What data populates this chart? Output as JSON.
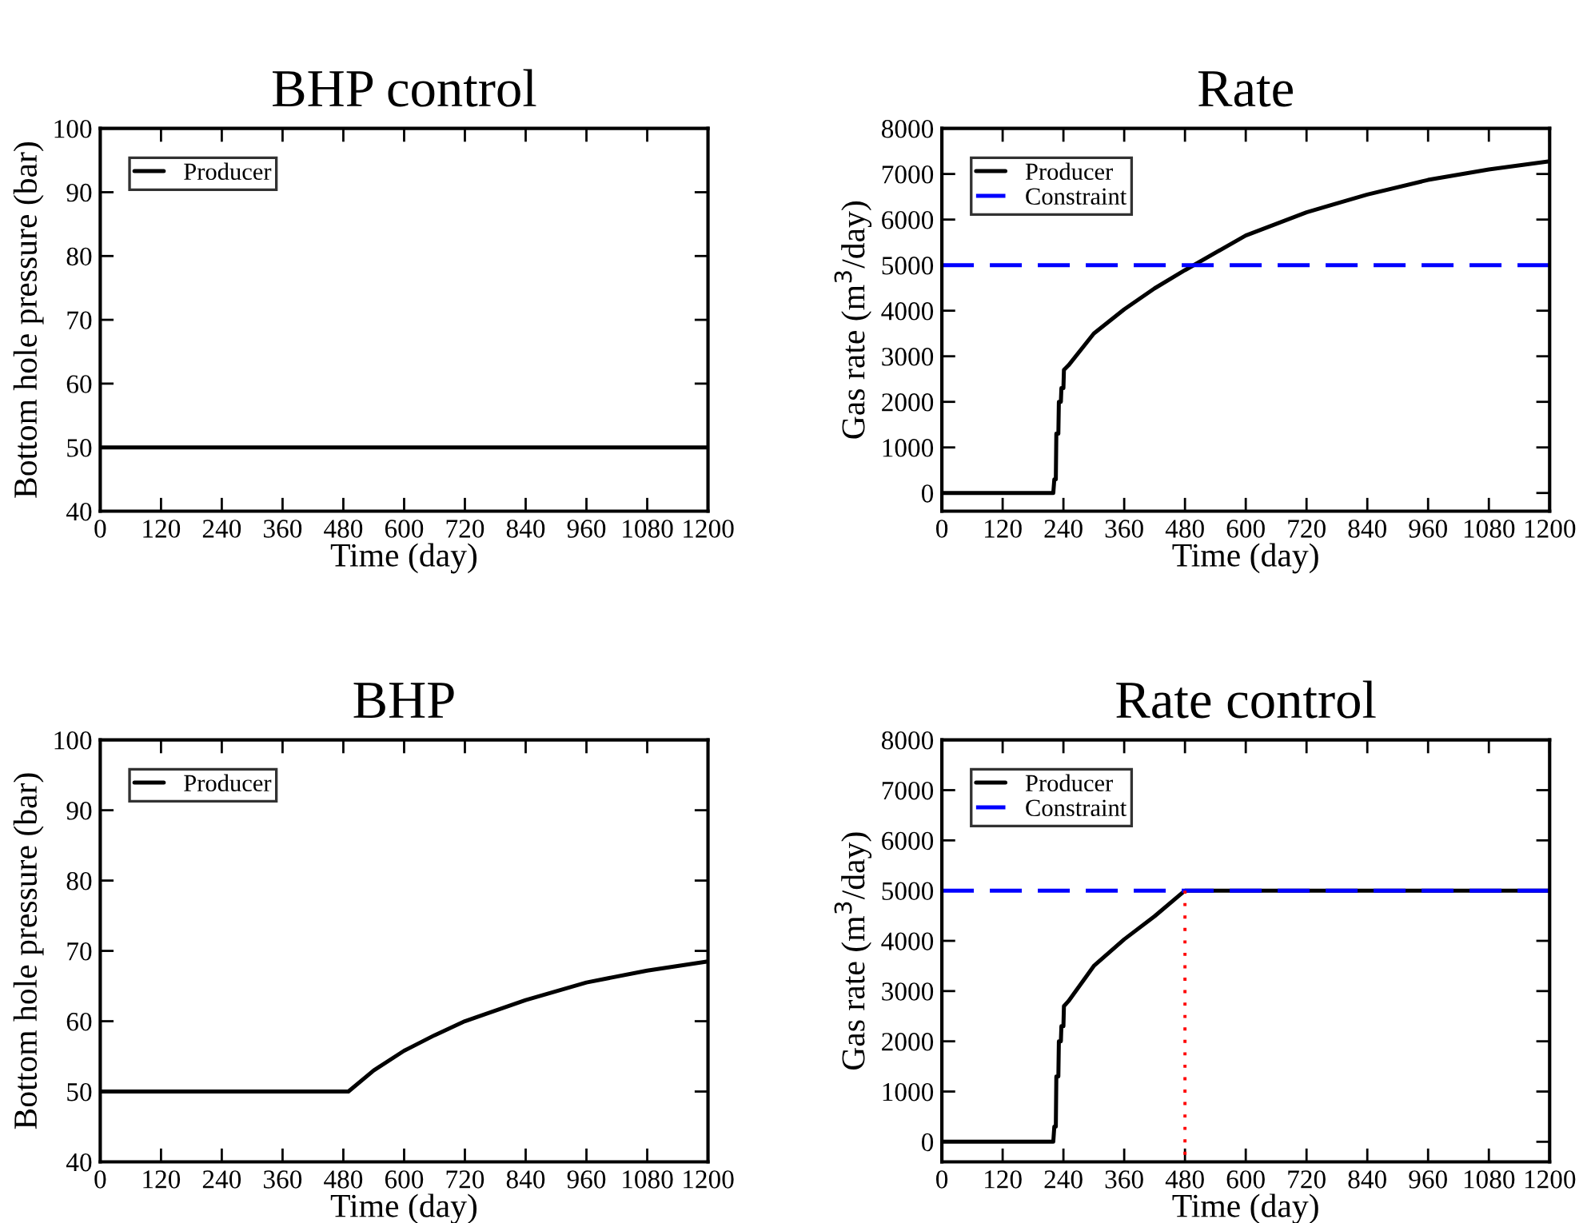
{
  "chart_data": [
    {
      "type": "line",
      "title": "BHP control",
      "xlabel": "Time (day)",
      "ylabel": "Bottom hole pressure (bar)",
      "xlim": [
        0,
        1200
      ],
      "xticks": [
        0,
        120,
        240,
        360,
        480,
        600,
        720,
        840,
        960,
        1080,
        1200
      ],
      "ylim": [
        40,
        100
      ],
      "yticks": [
        40,
        50,
        60,
        70,
        80,
        90,
        100
      ],
      "legend": "top left",
      "grid": false,
      "series": [
        {
          "name": "Producer",
          "color": "#000000",
          "line_style": "solid",
          "x": [
            0,
            1200
          ],
          "values": [
            50,
            50
          ]
        }
      ]
    },
    {
      "type": "line",
      "title": "Rate",
      "xlabel": "Time (day)",
      "ylabel": "Gas rate (m$^{3}$/day)",
      "xlim": [
        0,
        1200
      ],
      "xticks": [
        0,
        120,
        240,
        360,
        480,
        600,
        720,
        840,
        960,
        1080,
        1200
      ],
      "ylim": [
        -400,
        8000
      ],
      "yticks": [
        0,
        1000,
        2000,
        3000,
        4000,
        5000,
        6000,
        7000,
        8000
      ],
      "legend": "top left",
      "grid": false,
      "series": [
        {
          "name": "Producer",
          "color": "#000000",
          "line_style": "solid",
          "x": [
            0,
            220,
            222,
            225,
            226,
            230,
            231,
            235,
            236,
            240,
            241,
            250,
            300,
            360,
            420,
            480,
            600,
            720,
            840,
            960,
            1080,
            1200
          ],
          "values": [
            0,
            0,
            300,
            300,
            1300,
            1300,
            2000,
            2000,
            2300,
            2300,
            2700,
            2800,
            3500,
            4030,
            4490,
            4890,
            5650,
            6160,
            6550,
            6870,
            7100,
            7280
          ]
        },
        {
          "name": "Constraint",
          "color": "#0000ff",
          "line_style": "dashed",
          "x": [
            0,
            1200
          ],
          "values": [
            5000,
            5000
          ]
        }
      ]
    },
    {
      "type": "line",
      "title": "BHP",
      "xlabel": "Time (day)",
      "ylabel": "Bottom hole pressure (bar)",
      "xlim": [
        0,
        1200
      ],
      "xticks": [
        0,
        120,
        240,
        360,
        480,
        600,
        720,
        840,
        960,
        1080,
        1200
      ],
      "ylim": [
        40,
        100
      ],
      "yticks": [
        40,
        50,
        60,
        70,
        80,
        90,
        100
      ],
      "legend": "top left",
      "grid": false,
      "series": [
        {
          "name": "Producer",
          "color": "#000000",
          "line_style": "solid",
          "x": [
            0,
            490,
            540,
            600,
            660,
            720,
            840,
            960,
            1080,
            1200
          ],
          "values": [
            50,
            50,
            53,
            55.8,
            58,
            60,
            63,
            65.5,
            67.2,
            68.5
          ]
        }
      ]
    },
    {
      "type": "line",
      "title": "Rate control",
      "xlabel": "Time (day)",
      "ylabel": "Gas rate (m$^{3}$/day)",
      "xlim": [
        0,
        1200
      ],
      "xticks": [
        0,
        120,
        240,
        360,
        480,
        600,
        720,
        840,
        960,
        1080,
        1200
      ],
      "ylim": [
        -400,
        8000
      ],
      "yticks": [
        0,
        1000,
        2000,
        3000,
        4000,
        5000,
        6000,
        7000,
        8000
      ],
      "legend": "top left",
      "grid": false,
      "series": [
        {
          "name": "Producer",
          "color": "#000000",
          "line_style": "solid",
          "x": [
            0,
            220,
            222,
            225,
            226,
            230,
            231,
            235,
            236,
            240,
            241,
            250,
            300,
            360,
            420,
            480,
            1200
          ],
          "values": [
            0,
            0,
            300,
            300,
            1300,
            1300,
            2000,
            2000,
            2300,
            2300,
            2700,
            2800,
            3500,
            4030,
            4490,
            5000,
            5000
          ]
        },
        {
          "name": "Constraint",
          "color": "#0000ff",
          "line_style": "dashed",
          "x": [
            0,
            1200
          ],
          "values": [
            5000,
            5000
          ]
        },
        {
          "color": "#ff0000",
          "line_style": "dotted",
          "x": [
            480,
            480
          ],
          "values": [
            5000,
            -400
          ]
        }
      ]
    }
  ]
}
